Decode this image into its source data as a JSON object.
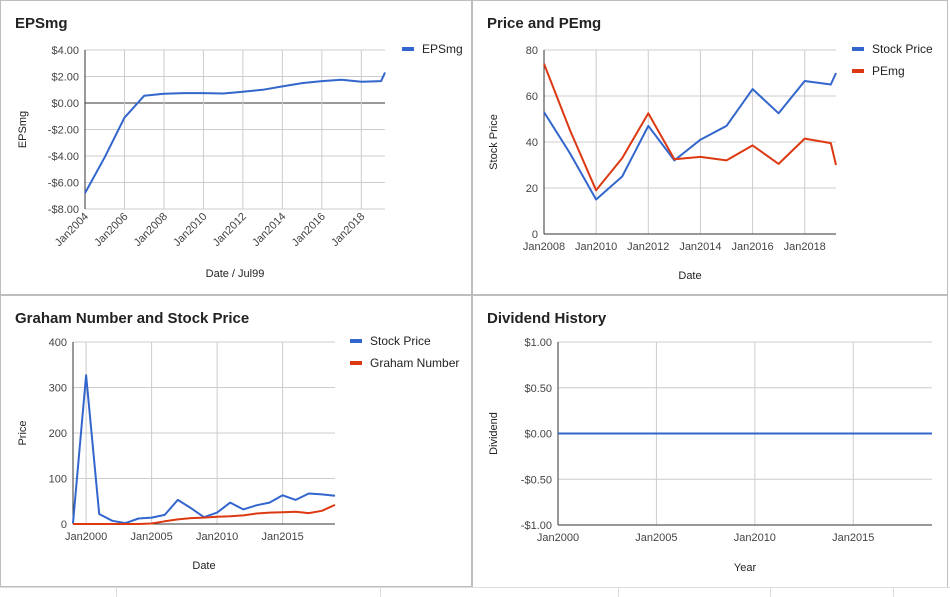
{
  "chart_data": [
    {
      "type": "line",
      "title": "EPSmg",
      "xlabel": "Date / Jul99",
      "ylabel": "EPSmg",
      "ylim": [
        -8,
        4
      ],
      "yticks": [
        4,
        2,
        0,
        -2,
        -4,
        -6,
        -8
      ],
      "ytick_labels": [
        "$4.00",
        "$2.00",
        "$0.00",
        "-$2.00",
        "-$4.00",
        "-$6.00",
        "-$8.00"
      ],
      "xlim": [
        2004,
        2019.2
      ],
      "xticks": [
        2004,
        2006,
        2008,
        2010,
        2012,
        2014,
        2016,
        2018
      ],
      "xtick_labels": [
        "Jan2004",
        "Jan2006",
        "Jan2008",
        "Jan2010",
        "Jan2012",
        "Jan2014",
        "Jan2016",
        "Jan2018"
      ],
      "xtick_rotated": true,
      "zero_line": true,
      "grid": true,
      "legend_position": "right",
      "series": [
        {
          "name": "EPSmg",
          "color": "#3366cc",
          "x": [
            2004,
            2005,
            2006,
            2007,
            2008,
            2009,
            2010,
            2011,
            2012,
            2013,
            2014,
            2015,
            2016,
            2017,
            2018,
            2019,
            2019.2
          ],
          "y": [
            -6.8,
            -4.1,
            -1.1,
            0.55,
            0.7,
            0.75,
            0.75,
            0.72,
            0.85,
            1.0,
            1.25,
            1.5,
            1.65,
            1.75,
            1.6,
            1.65,
            2.3
          ]
        }
      ]
    },
    {
      "type": "line",
      "title": "Price and PEmg",
      "xlabel": "Date",
      "ylabel": "Stock Price",
      "ylim": [
        0,
        80
      ],
      "yticks": [
        0,
        20,
        40,
        60,
        80
      ],
      "ytick_labels": [
        "0",
        "20",
        "40",
        "60",
        "80"
      ],
      "xlim": [
        2008,
        2019.2
      ],
      "xticks": [
        2008,
        2010,
        2012,
        2014,
        2016,
        2018
      ],
      "xtick_labels": [
        "Jan2008",
        "Jan2010",
        "Jan2012",
        "Jan2014",
        "Jan2016",
        "Jan2018"
      ],
      "xtick_rotated": false,
      "grid": true,
      "legend_position": "right",
      "series": [
        {
          "name": "Stock Price",
          "color": "#3366cc",
          "x": [
            2008,
            2009,
            2010,
            2011,
            2012,
            2013,
            2014,
            2015,
            2016,
            2017,
            2018,
            2019,
            2019.2
          ],
          "y": [
            53,
            35,
            15,
            25,
            47,
            32,
            41,
            47,
            63,
            52.5,
            66.5,
            65,
            70
          ]
        },
        {
          "name": "PEmg",
          "color": "#dc3912",
          "x": [
            2008,
            2009,
            2010,
            2011,
            2012,
            2013,
            2014,
            2015,
            2016,
            2017,
            2018,
            2019,
            2019.2
          ],
          "y": [
            74,
            45,
            19,
            33,
            52.5,
            32.5,
            33.5,
            32,
            38.5,
            30.5,
            41.5,
            39.5,
            30
          ]
        }
      ]
    },
    {
      "type": "line",
      "title": "Graham Number and Stock Price",
      "xlabel": "Date",
      "ylabel": "Price",
      "ylim": [
        0,
        400
      ],
      "yticks": [
        0,
        100,
        200,
        300,
        400
      ],
      "ytick_labels": [
        "0",
        "100",
        "200",
        "300",
        "400"
      ],
      "xlim": [
        1999,
        2019
      ],
      "xticks": [
        2000,
        2005,
        2010,
        2015
      ],
      "xtick_labels": [
        "Jan2000",
        "Jan2005",
        "Jan2010",
        "Jan2015"
      ],
      "xtick_rotated": false,
      "grid": true,
      "legend_position": "right",
      "series": [
        {
          "name": "Stock Price",
          "color": "#3366cc",
          "x": [
            1999,
            2000,
            2001,
            2002,
            2003,
            2004,
            2005,
            2006,
            2007,
            2008,
            2009,
            2010,
            2011,
            2012,
            2013,
            2014,
            2015,
            2016,
            2017,
            2018,
            2019
          ],
          "y": [
            2,
            327,
            22,
            7,
            2,
            12,
            14,
            20,
            53,
            35,
            15,
            25,
            47,
            32,
            41,
            47,
            63,
            53,
            67,
            65,
            62
          ]
        },
        {
          "name": "Graham Number",
          "color": "#dc3912",
          "x": [
            1999,
            2000,
            2001,
            2002,
            2003,
            2004,
            2005,
            2006,
            2007,
            2008,
            2009,
            2010,
            2011,
            2012,
            2013,
            2014,
            2015,
            2016,
            2017,
            2018,
            2019
          ],
          "y": [
            0,
            0,
            0,
            0,
            0,
            0,
            1,
            6,
            10,
            13,
            14,
            16,
            17,
            19,
            23,
            25,
            26,
            27,
            24,
            29,
            42
          ]
        }
      ]
    },
    {
      "type": "line",
      "title": "Dividend History",
      "xlabel": "Year",
      "ylabel": "Dividend",
      "ylim": [
        -1,
        1
      ],
      "yticks": [
        1,
        0.5,
        0,
        -0.5,
        -1
      ],
      "ytick_labels": [
        "$1.00",
        "$0.50",
        "$0.00",
        "-$0.50",
        "-$1.00"
      ],
      "xlim": [
        2000,
        2019
      ],
      "xticks": [
        2000,
        2005,
        2010,
        2015
      ],
      "xtick_labels": [
        "Jan2000",
        "Jan2005",
        "Jan2010",
        "Jan2015"
      ],
      "xtick_rotated": false,
      "grid": true,
      "legend_position": "none",
      "series": [
        {
          "color": "#3366cc",
          "x": [
            2000,
            2001,
            2018,
            2019
          ],
          "y": [
            0,
            0,
            0,
            0
          ]
        }
      ]
    }
  ]
}
